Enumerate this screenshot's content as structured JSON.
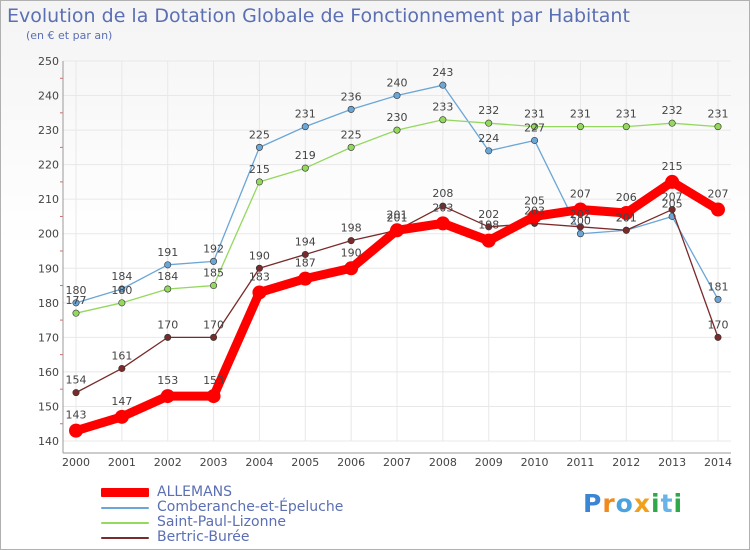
{
  "colors": {
    "title": "#5b6fb4",
    "axis_text": "#444444",
    "grid": "#e8e8e8"
  },
  "chart_data": {
    "type": "line",
    "title": "Evolution de la Dotation Globale de Fonctionnement par Habitant",
    "subtitle": "(en € et par an)",
    "xlabel": "",
    "ylabel": "",
    "ylim": [
      140,
      250
    ],
    "yticks": [
      140,
      150,
      160,
      170,
      180,
      190,
      200,
      210,
      220,
      230,
      240,
      250
    ],
    "x": [
      "2000",
      "2001",
      "2002",
      "2003",
      "2004",
      "2005",
      "2006",
      "2007",
      "2008",
      "2009",
      "2010",
      "2011",
      "2012",
      "2013",
      "2014"
    ],
    "grid": true,
    "legend_position": "bottom-left",
    "series": [
      {
        "name": "ALLEMANS",
        "color": "#ff0000",
        "emphasis": true,
        "values": [
          143,
          147,
          153,
          153,
          183,
          187,
          190,
          201,
          203,
          198,
          205,
          207,
          206,
          215,
          207
        ]
      },
      {
        "name": "Comberanche-et-Épeluche",
        "color": "#6aa6d6",
        "emphasis": false,
        "values": [
          180,
          184,
          191,
          192,
          225,
          231,
          236,
          240,
          243,
          224,
          227,
          200,
          201,
          205,
          181
        ]
      },
      {
        "name": "Saint-Paul-Lizonne",
        "color": "#94d85e",
        "emphasis": false,
        "values": [
          177,
          180,
          184,
          185,
          215,
          219,
          225,
          230,
          233,
          232,
          231,
          231,
          231,
          232,
          231
        ]
      },
      {
        "name": "Bertric-Burée",
        "color": "#7a2a2a",
        "emphasis": false,
        "values": [
          154,
          161,
          170,
          170,
          190,
          194,
          198,
          201,
          208,
          202,
          203,
          202,
          201,
          207,
          170
        ]
      }
    ]
  },
  "brand": {
    "letters": [
      "P",
      "r",
      "o",
      "x",
      "i",
      "t",
      "i"
    ],
    "colors": [
      "#3a86d4",
      "#f08a1c",
      "#4aa3df",
      "#f0a01c",
      "#2fa84a",
      "#6ab3e6",
      "#2fa84a"
    ]
  }
}
